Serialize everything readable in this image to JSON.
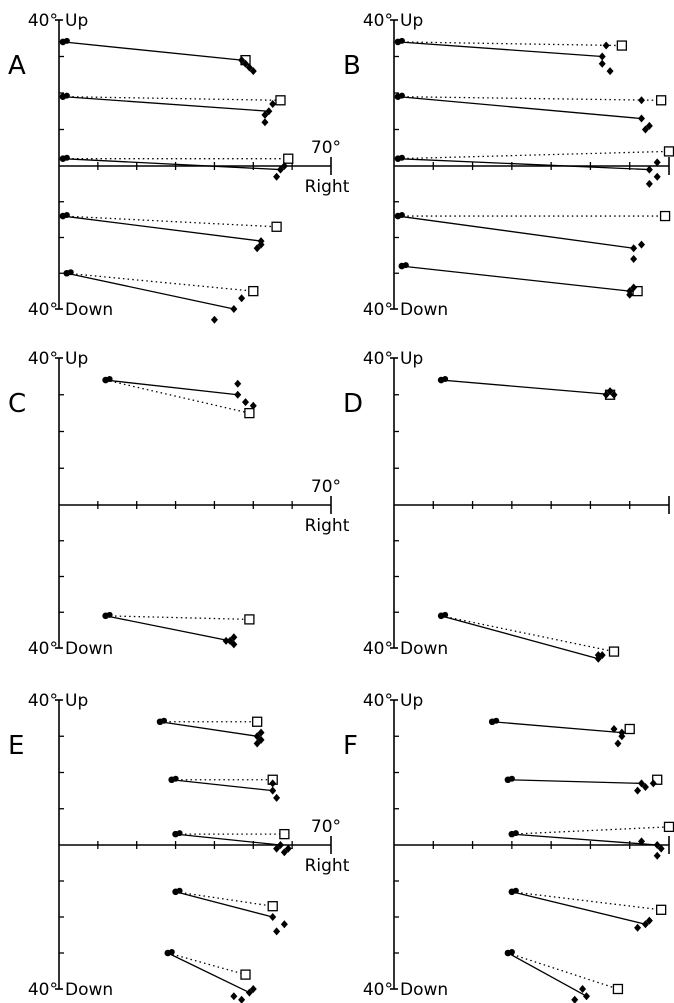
{
  "chart_data": [
    {
      "panel": "A",
      "type": "scatter",
      "axis_labels": {
        "up": "Up",
        "down": "Down",
        "right": "Right",
        "top_value": "40°",
        "bottom_value": "40°",
        "right_value": "70°"
      },
      "xlim": [
        0,
        70
      ],
      "ylim": [
        -40,
        40
      ],
      "trials": [
        {
          "start": [
            1,
            34
          ],
          "target": [
            48,
            29
          ],
          "end": [
            47,
            29
          ],
          "end_scatter": [
            [
              48,
              28
            ],
            [
              49,
              27
            ],
            [
              50,
              26
            ]
          ],
          "path": "solid"
        },
        {
          "start": [
            1,
            19
          ],
          "target": [
            57,
            18
          ],
          "end": [
            54,
            15
          ],
          "end_scatter": [
            [
              53,
              14
            ],
            [
              55,
              17
            ],
            [
              53,
              12
            ]
          ],
          "path": "solid-dotted"
        },
        {
          "start": [
            1,
            2
          ],
          "target": [
            59,
            2
          ],
          "end": [
            57,
            -1
          ],
          "end_scatter": [
            [
              56,
              -3
            ],
            [
              58,
              0
            ]
          ],
          "path": "solid-dotted"
        },
        {
          "start": [
            1,
            -14
          ],
          "target": [
            56,
            -17
          ],
          "end": [
            52,
            -21
          ],
          "end_scatter": [
            [
              51,
              -23
            ],
            [
              52,
              -22
            ]
          ],
          "path": "solid-dotted"
        },
        {
          "start": [
            2,
            -30
          ],
          "target": [
            50,
            -35
          ],
          "end": [
            45,
            -40
          ],
          "end_scatter": [
            [
              40,
              -43
            ],
            [
              47,
              -37
            ]
          ],
          "path": "solid-dotted"
        }
      ]
    },
    {
      "panel": "B",
      "type": "scatter",
      "axis_labels": {
        "up": "Up",
        "down": "Down",
        "right": "",
        "top_value": "40°",
        "bottom_value": "40°",
        "right_value": ""
      },
      "xlim": [
        0,
        70
      ],
      "ylim": [
        -40,
        40
      ],
      "trials": [
        {
          "start": [
            1,
            34
          ],
          "target": [
            58,
            33
          ],
          "end": [
            53,
            30
          ],
          "end_scatter": [
            [
              53,
              28
            ],
            [
              55,
              26
            ],
            [
              54,
              33
            ]
          ],
          "path": "solid-dotted"
        },
        {
          "start": [
            1,
            19
          ],
          "target": [
            68,
            18
          ],
          "end": [
            63,
            13
          ],
          "end_scatter": [
            [
              64,
              10
            ],
            [
              65,
              11
            ],
            [
              63,
              18
            ]
          ],
          "path": "solid-dotted"
        },
        {
          "start": [
            1,
            2
          ],
          "target": [
            70,
            4
          ],
          "end": [
            65,
            -1
          ],
          "end_scatter": [
            [
              65,
              -5
            ],
            [
              67,
              -3
            ],
            [
              67,
              1
            ]
          ],
          "path": "solid-dotted"
        },
        {
          "start": [
            1,
            -14
          ],
          "target": [
            69,
            -14
          ],
          "end": [
            61,
            -23
          ],
          "end_scatter": [
            [
              61,
              -26
            ],
            [
              63,
              -22
            ]
          ],
          "path": "solid-dotted"
        },
        {
          "start": [
            2,
            -28
          ],
          "target": [
            62,
            -35
          ],
          "end": [
            60,
            -35
          ],
          "end_scatter": [
            [
              61,
              -34
            ],
            [
              60,
              -36
            ]
          ],
          "path": "solid"
        }
      ]
    },
    {
      "panel": "C",
      "type": "scatter",
      "axis_labels": {
        "up": "Up",
        "down": "Down",
        "right": "Right",
        "top_value": "40°",
        "bottom_value": "40°",
        "right_value": "70°"
      },
      "xlim": [
        0,
        70
      ],
      "ylim": [
        -40,
        40
      ],
      "trials": [
        {
          "start": [
            12,
            34
          ],
          "target": [
            49,
            25
          ],
          "end": [
            46,
            30
          ],
          "end_scatter": [
            [
              46,
              33
            ],
            [
              48,
              28
            ],
            [
              50,
              27
            ]
          ],
          "path": "solid-dotted"
        },
        {
          "start": [
            12,
            -31
          ],
          "target": [
            49,
            -32
          ],
          "end": [
            44,
            -38
          ],
          "end_scatter": [
            [
              43,
              -38
            ],
            [
              45,
              -37
            ],
            [
              45,
              -39
            ]
          ],
          "path": "solid-dotted"
        }
      ]
    },
    {
      "panel": "D",
      "type": "scatter",
      "axis_labels": {
        "up": "Up",
        "down": "Down",
        "right": "",
        "top_value": "40°",
        "bottom_value": "40°",
        "right_value": ""
      },
      "xlim": [
        0,
        70
      ],
      "ylim": [
        -40,
        40
      ],
      "trials": [
        {
          "start": [
            12,
            34
          ],
          "target": [
            55,
            30
          ],
          "end": [
            56,
            30
          ],
          "end_scatter": [
            [
              54,
              30
            ],
            [
              55,
              31
            ]
          ],
          "path": "solid"
        },
        {
          "start": [
            12,
            -31
          ],
          "target": [
            56,
            -41
          ],
          "end": [
            52,
            -43
          ],
          "end_scatter": [
            [
              53,
              -42
            ],
            [
              52,
              -42
            ]
          ],
          "path": "solid-dotted"
        }
      ]
    },
    {
      "panel": "E",
      "type": "scatter",
      "axis_labels": {
        "up": "Up",
        "down": "Down",
        "right": "Right",
        "top_value": "40°",
        "bottom_value": "40°",
        "right_value": "70°"
      },
      "xlim": [
        0,
        70
      ],
      "ylim": [
        -40,
        40
      ],
      "trials": [
        {
          "start": [
            26,
            34
          ],
          "target": [
            51,
            34
          ],
          "end": [
            51,
            30
          ],
          "end_scatter": [
            [
              52,
              29
            ],
            [
              52,
              31
            ],
            [
              51,
              28
            ]
          ],
          "path": "solid-dotted"
        },
        {
          "start": [
            29,
            18
          ],
          "target": [
            55,
            18
          ],
          "end": [
            55,
            15
          ],
          "end_scatter": [
            [
              56,
              13
            ],
            [
              55,
              17
            ]
          ],
          "path": "solid-dotted"
        },
        {
          "start": [
            30,
            3
          ],
          "target": [
            58,
            3
          ],
          "end": [
            57,
            0
          ],
          "end_scatter": [
            [
              56,
              -1
            ],
            [
              59,
              -1
            ],
            [
              58,
              -2
            ]
          ],
          "path": "solid-dotted"
        },
        {
          "start": [
            30,
            -13
          ],
          "target": [
            55,
            -17
          ],
          "end": [
            55,
            -20
          ],
          "end_scatter": [
            [
              56,
              -24
            ],
            [
              58,
              -22
            ]
          ],
          "path": "solid-dotted"
        },
        {
          "start": [
            28,
            -30
          ],
          "target": [
            48,
            -36
          ],
          "end": [
            49,
            -41
          ],
          "end_scatter": [
            [
              45,
              -42
            ],
            [
              47,
              -43
            ],
            [
              50,
              -40
            ]
          ],
          "path": "solid-dotted"
        }
      ]
    },
    {
      "panel": "F",
      "type": "scatter",
      "axis_labels": {
        "up": "Up",
        "down": "Down",
        "right": "",
        "top_value": "40°",
        "bottom_value": "40°",
        "right_value": ""
      },
      "xlim": [
        0,
        70
      ],
      "ylim": [
        -40,
        40
      ],
      "trials": [
        {
          "start": [
            25,
            34
          ],
          "target": [
            60,
            32
          ],
          "end": [
            58,
            31
          ],
          "end_scatter": [
            [
              56,
              32
            ],
            [
              58,
              30
            ],
            [
              57,
              28
            ]
          ],
          "path": "solid"
        },
        {
          "start": [
            29,
            18
          ],
          "target": [
            67,
            18
          ],
          "end": [
            63,
            17
          ],
          "end_scatter": [
            [
              62,
              15
            ],
            [
              64,
              16
            ],
            [
              66,
              17
            ]
          ],
          "path": "solid"
        },
        {
          "start": [
            30,
            3
          ],
          "target": [
            70,
            5
          ],
          "end": [
            67,
            0
          ],
          "end_scatter": [
            [
              67,
              -3
            ],
            [
              68,
              -1
            ],
            [
              63,
              1
            ]
          ],
          "path": "solid-dotted"
        },
        {
          "start": [
            30,
            -13
          ],
          "target": [
            68,
            -18
          ],
          "end": [
            64,
            -22
          ],
          "end_scatter": [
            [
              62,
              -23
            ],
            [
              65,
              -21
            ]
          ],
          "path": "solid-dotted"
        },
        {
          "start": [
            29,
            -30
          ],
          "target": [
            57,
            -40
          ],
          "end": [
            49,
            -42
          ],
          "end_scatter": [
            [
              46,
              -43
            ],
            [
              48,
              -40
            ]
          ],
          "path": "solid-dotted"
        }
      ]
    }
  ]
}
